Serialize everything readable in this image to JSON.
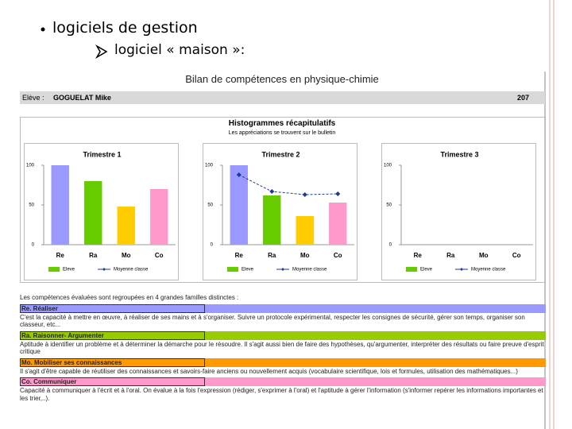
{
  "slide": {
    "bullet": "logiciels de gestion",
    "sub_bullet": "logiciel « maison »:"
  },
  "document": {
    "title": "Bilan de compétences en physique-chimie",
    "student_label": "Elève :",
    "student_name": "GOGUELAT Mike",
    "number": "207",
    "summary_title": "Histogrammes récapitulatifs",
    "summary_note": "Les appréciations se trouvent sur le bulletin",
    "intro": "Les compétences évaluées sont regroupées en 4 grandes familles distinctes :",
    "families": [
      {
        "heading": "Re. Réaliser",
        "color": "#9999ff",
        "text": "C'est la capacité à mettre en œuvre, à réaliser de ses mains et à s'organiser. Suivre un protocole expérimental, respecter les consignes de sécurité, gérer son temps, organiser son classeur, etc..."
      },
      {
        "heading": "Ra. Raisonner- Argumenter",
        "color": "#99cc00",
        "text": "Aptitude à identifier un problème et à déterminer la démarche pour le résoudre. Il s'agit aussi bien de faire des hypothèses, qu'argumenter, interpréter des résultats ou faire preuve d'esprit critique"
      },
      {
        "heading": "Mo. Mobiliser ses connaissances",
        "color": "#ff9900",
        "text": "Il s'agit d'être capable de réutiliser des connaissances et savoirs-faire anciens ou nouvellement acquis (vocabulaire scientifique, lois et formules, utilisation des mathématiques...)"
      },
      {
        "heading": "Co. Communiquer",
        "color": "#ff99cc",
        "text": "Capacité à communiquer à l'écrit et à l'oral. On évalue à la fois l'expression (rédiger, s'exprimer à l'oral) et l'aptitude à gérer l'information (s'informer repérer les informations importantes et les trier,..)."
      }
    ]
  },
  "chart_data": [
    {
      "type": "bar",
      "title": "Trimestre 1",
      "categories": [
        "Re",
        "Ra",
        "Mo",
        "Co"
      ],
      "series": [
        {
          "name": "Eleve",
          "color": "#66cc00",
          "colors": [
            "#9999ff",
            "#66cc00",
            "#ffcc00",
            "#ff99cc"
          ],
          "values": [
            100,
            80,
            48,
            70
          ]
        },
        {
          "name": "Moyenne classe",
          "color": "#1f3a93",
          "values": [
            null,
            null,
            null,
            null
          ]
        }
      ],
      "ylim": [
        0,
        100
      ],
      "yticks": [
        0,
        50,
        100
      ]
    },
    {
      "type": "bar",
      "title": "Trimestre 2",
      "categories": [
        "Re",
        "Ra",
        "Mo",
        "Co"
      ],
      "series": [
        {
          "name": "Eleve",
          "color": "#66cc00",
          "colors": [
            "#9999ff",
            "#66cc00",
            "#ffcc00",
            "#ff99cc"
          ],
          "values": [
            100,
            62,
            36,
            53
          ]
        },
        {
          "name": "Moyenne classe",
          "color": "#1f3a93",
          "values": [
            88,
            67,
            63,
            64
          ]
        }
      ],
      "ylim": [
        0,
        100
      ],
      "yticks": [
        0,
        50,
        100
      ]
    },
    {
      "type": "bar",
      "title": "Trimestre 3",
      "categories": [
        "Re",
        "Ra",
        "Mo",
        "Co"
      ],
      "series": [
        {
          "name": "Eleve",
          "color": "#66cc00",
          "colors": [
            "#9999ff",
            "#66cc00",
            "#ffcc00",
            "#ff99cc"
          ],
          "values": [
            null,
            null,
            null,
            null
          ]
        },
        {
          "name": "Moyenne classe",
          "color": "#1f3a93",
          "values": [
            null,
            null,
            null,
            null
          ]
        }
      ],
      "ylim": [
        0,
        100
      ],
      "yticks": [
        0,
        50,
        100
      ]
    }
  ]
}
